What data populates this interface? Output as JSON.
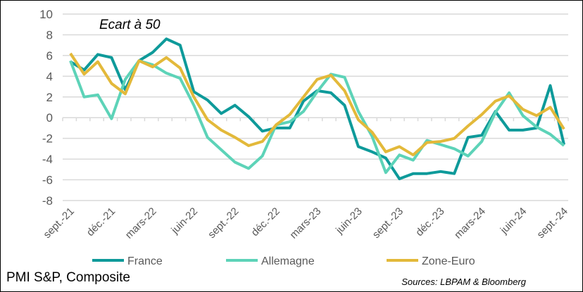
{
  "chart_data": {
    "type": "line",
    "title": "Ecart à 50",
    "xlabel": "",
    "ylabel": "",
    "ylim": [
      -8,
      10
    ],
    "yticks": [
      10,
      8,
      6,
      4,
      2,
      0,
      -2,
      -4,
      -6,
      -8
    ],
    "grid": true,
    "legend": "bottom",
    "x": [
      "sept.-21",
      "oct.-21",
      "nov.-21",
      "déc.-21",
      "janv.-22",
      "févr.-22",
      "mars-22",
      "avr.-22",
      "mai-22",
      "juin-22",
      "juil.-22",
      "août-22",
      "sept.-22",
      "oct.-22",
      "nov.-22",
      "déc.-22",
      "janv.-23",
      "févr.-23",
      "mars-23",
      "avr.-23",
      "mai-23",
      "juin-23",
      "juil.-23",
      "août-23",
      "sept.-23",
      "oct.-23",
      "nov.-23",
      "déc.-23",
      "janv.-24",
      "févr.-24",
      "mars-24",
      "avr.-24",
      "mai-24",
      "juin-24",
      "juil.-24",
      "août-24",
      "sept.-24"
    ],
    "xtick_labels": [
      "sept.-21",
      "déc.-21",
      "mars-22",
      "juin-22",
      "sept.-22",
      "déc.-22",
      "mars-23",
      "juin-23",
      "sept.-23",
      "déc.-23",
      "mars-24",
      "juin-24",
      "sept.-24"
    ],
    "series": [
      {
        "name": "France",
        "color": "#0E9A9A",
        "values": [
          5.4,
          4.6,
          6.1,
          5.8,
          2.7,
          5.5,
          6.3,
          7.6,
          7.0,
          2.5,
          1.7,
          0.4,
          1.2,
          0.1,
          -1.3,
          -1.0,
          -1.0,
          1.6,
          2.6,
          2.4,
          1.2,
          -2.8,
          -3.3,
          -3.9,
          -5.9,
          -5.4,
          -5.4,
          -5.2,
          -5.4,
          -1.9,
          -1.7,
          0.6,
          -1.2,
          -1.2,
          -1.0,
          3.1,
          -2.6
        ]
      },
      {
        "name": "Allemagne",
        "color": "#5DD3B8",
        "values": [
          5.5,
          2.0,
          2.2,
          -0.1,
          3.7,
          5.5,
          5.1,
          4.3,
          3.8,
          1.2,
          -1.9,
          -3.1,
          -4.3,
          -4.9,
          -3.7,
          -0.7,
          -0.4,
          0.6,
          2.5,
          4.2,
          3.9,
          0.6,
          -1.8,
          -5.3,
          -3.6,
          -4.1,
          -2.2,
          -2.6,
          -3.0,
          -3.7,
          -2.3,
          0.5,
          2.4,
          0.2,
          -0.9,
          -1.6,
          -2.7
        ]
      },
      {
        "name": "Zone-Euro",
        "color": "#E3B93A",
        "values": [
          6.2,
          4.2,
          5.4,
          3.3,
          2.3,
          5.5,
          4.9,
          5.8,
          4.8,
          2.0,
          -0.2,
          -1.2,
          -1.9,
          -2.7,
          -2.3,
          -0.7,
          0.3,
          2.0,
          3.7,
          4.1,
          2.6,
          -0.2,
          -1.4,
          -3.3,
          -2.8,
          -3.6,
          -2.4,
          -2.3,
          -2.0,
          -0.8,
          0.3,
          1.6,
          2.1,
          0.8,
          0.2,
          1.0,
          -1.1
        ]
      }
    ]
  },
  "footer": {
    "left": "PMI S&P, Composite",
    "right": "Sources: LBPAM & Bloomberg"
  }
}
